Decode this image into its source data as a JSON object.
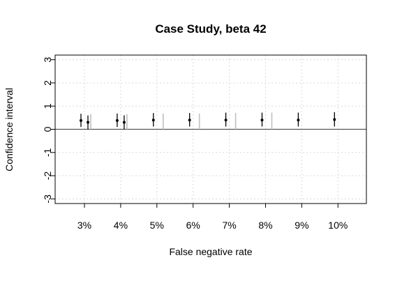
{
  "chart_data": {
    "type": "scatter",
    "title": "Case Study, beta 42",
    "xlabel": "False negative rate",
    "ylabel": "Confidence interval",
    "categories": [
      "3%",
      "4%",
      "5%",
      "6%",
      "7%",
      "8%",
      "9%",
      "10%"
    ],
    "ylim": [
      -3.2,
      3.2
    ],
    "yticks": [
      "-3",
      "-2",
      "-1",
      "0",
      "1",
      "2",
      "3"
    ],
    "grid": true,
    "reference_line": 0,
    "series": [
      {
        "color": "#000000",
        "points": [
          {
            "estimate": 0.38,
            "low": 0.1,
            "high": 0.67
          },
          {
            "estimate": 0.38,
            "low": 0.1,
            "high": 0.68
          },
          {
            "estimate": 0.4,
            "low": 0.12,
            "high": 0.7
          },
          {
            "estimate": 0.4,
            "low": 0.12,
            "high": 0.7
          },
          {
            "estimate": 0.4,
            "low": 0.12,
            "high": 0.72
          },
          {
            "estimate": 0.4,
            "low": 0.12,
            "high": 0.72
          },
          {
            "estimate": 0.4,
            "low": 0.12,
            "high": 0.72
          },
          {
            "estimate": 0.42,
            "low": 0.12,
            "high": 0.74
          }
        ]
      },
      {
        "color": "#000000",
        "points": [
          {
            "estimate": 0.3,
            "low": 0.0,
            "high": 0.6
          },
          {
            "estimate": 0.3,
            "low": 0.0,
            "high": 0.6
          }
        ]
      },
      {
        "color": "#bfbfbf",
        "points": [
          {
            "estimate": null,
            "low": 0.0,
            "high": 0.65
          },
          {
            "estimate": null,
            "low": 0.0,
            "high": 0.65
          },
          {
            "estimate": null,
            "low": 0.0,
            "high": 0.68
          },
          {
            "estimate": null,
            "low": 0.0,
            "high": 0.68
          },
          {
            "estimate": null,
            "low": 0.0,
            "high": 0.7
          },
          {
            "estimate": null,
            "low": 0.0,
            "high": 0.72
          }
        ]
      }
    ]
  }
}
